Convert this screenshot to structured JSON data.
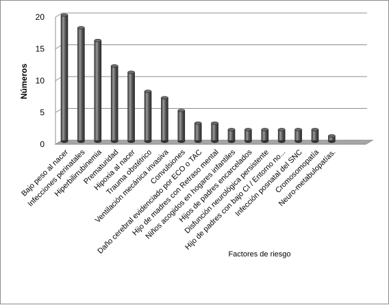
{
  "chart_data": {
    "type": "bar",
    "title": "",
    "xlabel": "Factores de riesgo",
    "ylabel": "Números",
    "ylim": [
      0,
      20
    ],
    "yticks": [
      0,
      5,
      10,
      15,
      20
    ],
    "grid": true,
    "legend": "none",
    "style": "3d-cylinder",
    "colors": {
      "bar": "#4d4d4d",
      "bar_highlight": "#9a9a9a",
      "floor": "#a6a6a6",
      "grid": "#8c8c8c"
    },
    "categories": [
      "Bajo peso al nacer",
      "Infecciones perinatales",
      "Hiperbilirrubinemia",
      "Prematuridad",
      "Hipoxia al nacer",
      "Trauma obstétrico",
      "Ventilación mecánica invasiva",
      "Convulsiones",
      "Daño cerebral evidenciado por ECO o TAC",
      "Hijo de madres con Retraso mental",
      "Niños acogidos en hogares infantiles",
      "Hijos de padres encarcelados",
      "Disfunción neurológica persistente",
      "Hijo de padres con bajo CI / Entorno no...",
      "Infección posnatal del SNC",
      "Cromosomopatía",
      "Neuro-metabulopatías."
    ],
    "values": [
      20,
      18,
      16,
      12,
      11,
      8,
      7,
      5,
      3,
      3,
      2,
      2,
      2,
      2,
      2,
      2,
      1
    ]
  }
}
